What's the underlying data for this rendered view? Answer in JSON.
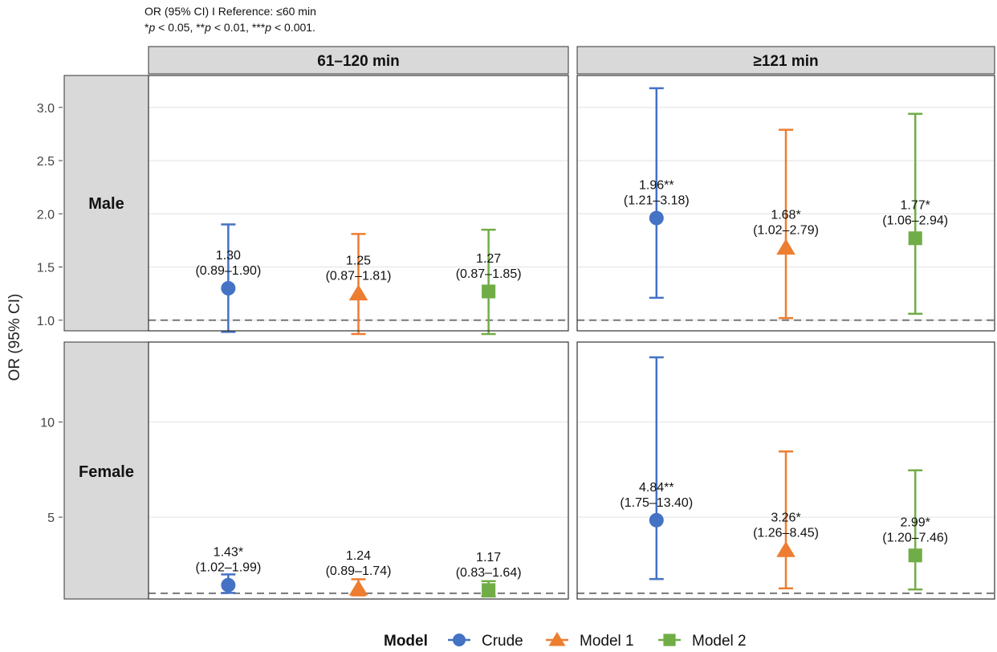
{
  "notes": {
    "line1": "OR (95% CI) I Reference: ≤60 min",
    "line2_parts": [
      {
        "t": "*",
        "i": false
      },
      {
        "t": "p",
        "i": true
      },
      {
        "t": " < 0.05, **",
        "i": false
      },
      {
        "t": "p",
        "i": true
      },
      {
        "t": " < 0.01, ***",
        "i": false
      },
      {
        "t": "p",
        "i": true
      },
      {
        "t": " < 0.001.",
        "i": false
      }
    ]
  },
  "chart_data": {
    "type": "scatter",
    "subtype": "forest-plot-faceted",
    "ylabel": "OR (95% CI)",
    "columns": [
      "61–120 min",
      "≥121 min"
    ],
    "rows": [
      "Male",
      "Female"
    ],
    "reference_line": 1.0,
    "grid": true,
    "legend": {
      "title": "Model",
      "position": "bottom",
      "entries": [
        {
          "name": "Crude",
          "shape": "circle",
          "color": "#4472C4"
        },
        {
          "name": "Model 1",
          "shape": "triangle",
          "color": "#ED7D31"
        },
        {
          "name": "Model 2",
          "shape": "square",
          "color": "#70AD47"
        }
      ]
    },
    "panels": [
      {
        "row": "Male",
        "ylim": [
          0.9,
          3.3
        ],
        "yticks": [
          1.0,
          1.5,
          2.0,
          2.5,
          3.0
        ],
        "ytick_labels": [
          "1.0",
          "1.5",
          "2.0",
          "2.5",
          "3.0"
        ],
        "columns": [
          {
            "column": "61–120 min",
            "points": [
              {
                "model": "Crude",
                "or": 1.3,
                "low": 0.89,
                "high": 1.9,
                "label": "1.30",
                "ci_label": "(0.89–1.90)"
              },
              {
                "model": "Model 1",
                "or": 1.25,
                "low": 0.87,
                "high": 1.81,
                "label": "1.25",
                "ci_label": "(0.87–1.81)"
              },
              {
                "model": "Model 2",
                "or": 1.27,
                "low": 0.87,
                "high": 1.85,
                "label": "1.27",
                "ci_label": "(0.87–1.85)"
              }
            ]
          },
          {
            "column": "≥121 min",
            "points": [
              {
                "model": "Crude",
                "or": 1.96,
                "low": 1.21,
                "high": 3.18,
                "label": "1.96**",
                "ci_label": "(1.21–3.18)"
              },
              {
                "model": "Model 1",
                "or": 1.68,
                "low": 1.02,
                "high": 2.79,
                "label": "1.68*",
                "ci_label": "(1.02–2.79)"
              },
              {
                "model": "Model 2",
                "or": 1.77,
                "low": 1.06,
                "high": 2.94,
                "label": "1.77*",
                "ci_label": "(1.06–2.94)"
              }
            ]
          }
        ]
      },
      {
        "row": "Female",
        "ylim": [
          0.7,
          14.2
        ],
        "yticks": [
          5,
          10
        ],
        "ytick_labels": [
          "5",
          "10"
        ],
        "columns": [
          {
            "column": "61–120 min",
            "points": [
              {
                "model": "Crude",
                "or": 1.43,
                "low": 1.02,
                "high": 1.99,
                "label": "1.43*",
                "ci_label": "(1.02–1.99)"
              },
              {
                "model": "Model 1",
                "or": 1.24,
                "low": 0.89,
                "high": 1.74,
                "label": "1.24",
                "ci_label": "(0.89–1.74)"
              },
              {
                "model": "Model 2",
                "or": 1.17,
                "low": 0.83,
                "high": 1.64,
                "label": "1.17",
                "ci_label": "(0.83–1.64)"
              }
            ]
          },
          {
            "column": "≥121 min",
            "points": [
              {
                "model": "Crude",
                "or": 4.84,
                "low": 1.75,
                "high": 13.4,
                "label": "4.84**",
                "ci_label": "(1.75–13.40)"
              },
              {
                "model": "Model 1",
                "or": 3.26,
                "low": 1.26,
                "high": 8.45,
                "label": "3.26*",
                "ci_label": "(1.26–8.45)"
              },
              {
                "model": "Model 2",
                "or": 2.99,
                "low": 1.2,
                "high": 7.46,
                "label": "2.99*",
                "ci_label": "(1.20–7.46)"
              }
            ]
          }
        ]
      }
    ]
  }
}
